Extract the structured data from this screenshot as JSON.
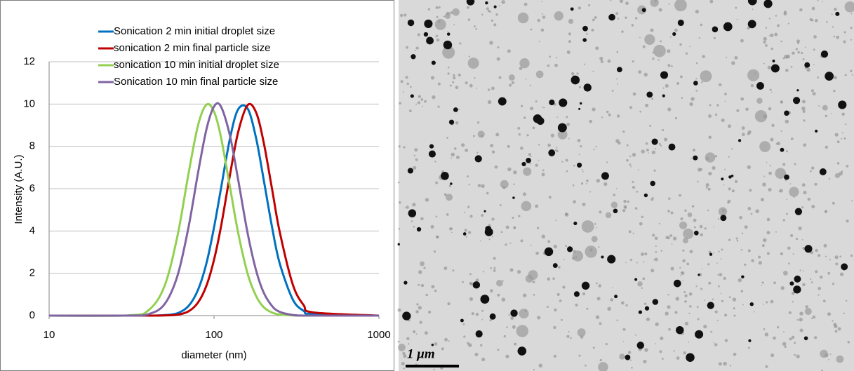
{
  "chart_data": {
    "type": "line",
    "xlabel": "diameter (nm)",
    "ylabel": "Intensity (A.U.)",
    "x": [
      10,
      30,
      40,
      50,
      60,
      70,
      80,
      90,
      100,
      110,
      125,
      140,
      160,
      180,
      200,
      225,
      250,
      300,
      350,
      400,
      1000
    ],
    "xscale": "log",
    "xlim": [
      10,
      1000
    ],
    "xticks": [
      10,
      100,
      1000
    ],
    "ylim": [
      0,
      12
    ],
    "yticks": [
      0,
      2,
      4,
      6,
      8,
      10,
      12
    ],
    "grid": true,
    "legend": "top",
    "series": [
      {
        "name": "Sonication 2 min initial droplet size",
        "color": "#0070c0",
        "values": [
          0,
          0,
          0,
          0.02,
          0.11,
          0.45,
          1.22,
          2.48,
          4.17,
          5.97,
          8.38,
          9.75,
          9.78,
          8.38,
          6.43,
          4.17,
          2.48,
          0.77,
          0.22,
          0.06,
          0
        ]
      },
      {
        "name": "sonication 2 min final particle size",
        "color": "#c00000",
        "values": [
          0,
          0,
          0,
          0.01,
          0.04,
          0.2,
          0.62,
          1.42,
          2.64,
          4.17,
          6.66,
          8.67,
          9.95,
          9.6,
          8.19,
          5.97,
          3.97,
          1.48,
          0.49,
          0.15,
          0
        ]
      },
      {
        "name": "sonication 10 min initial droplet size",
        "color": "#92d050",
        "values": [
          0,
          0.01,
          0.25,
          1.38,
          3.76,
          6.7,
          9.0,
          9.97,
          9.64,
          8.46,
          6.07,
          3.92,
          1.97,
          0.92,
          0.4,
          0.14,
          0.05,
          0.01,
          0,
          0,
          0
        ]
      },
      {
        "name": "Sonication 10 min final particle size",
        "color": "#8064a2",
        "values": [
          0,
          0,
          0.07,
          0.53,
          1.88,
          4.17,
          6.75,
          8.81,
          9.88,
          9.89,
          8.49,
          6.43,
          3.88,
          2.13,
          1.09,
          0.45,
          0.18,
          0.03,
          0,
          0,
          0
        ]
      }
    ]
  },
  "micrograph": {
    "scale_label": "1 μm"
  }
}
